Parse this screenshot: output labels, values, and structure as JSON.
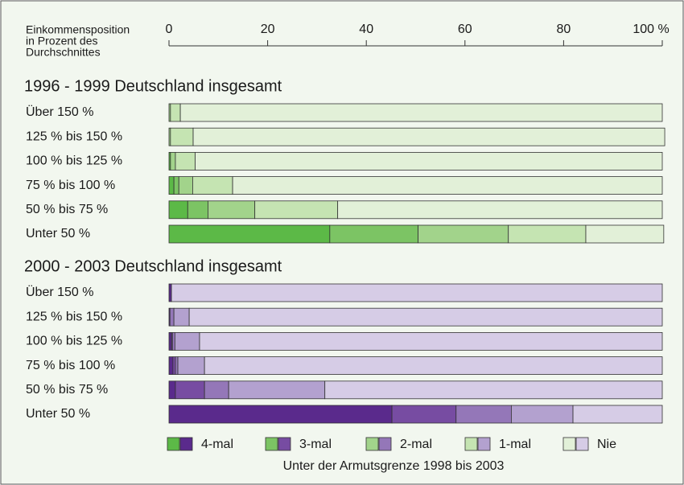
{
  "chart_data": {
    "type": "stacked-barh",
    "xlabel": [
      "Einkommensposition",
      "in Prozent  des",
      "Durchschnittes"
    ],
    "xlim": [
      0,
      100
    ],
    "xticks": [
      0,
      20,
      40,
      60,
      80,
      {
        "value": 100,
        "label": "100 %"
      }
    ],
    "legend": [
      "4-mal",
      "3-mal",
      "2-mal",
      "1-mal",
      "Nie"
    ],
    "caption": "Unter der Armutsgrenze 1998 bis 2003",
    "groups": [
      {
        "title": "1996 - 1999 Deutschland insgesamt",
        "categories": [
          "Über 150 %",
          "125 % bis 150 %",
          "100 % bis 125 %",
          "75 % bis 100 %",
          "50 % bis 75 %",
          "Unter 50 %"
        ],
        "series": [
          {
            "color": "#5cb947",
            "values": [
              0,
              0,
              0.3,
              1,
              3.8,
              32.6
            ]
          },
          {
            "color": "#7cc464",
            "values": [
              0,
              0,
              0,
              1,
              4.1,
              17.9
            ]
          },
          {
            "color": "#a2d38b",
            "values": [
              0.3,
              0.3,
              1,
              2.8,
              9.5,
              18.3
            ]
          },
          {
            "color": "#c5e4b2",
            "values": [
              2,
              4.6,
              4,
              8.1,
              16.8,
              15.7
            ]
          },
          {
            "color": "#e2f0d8",
            "values": [
              97.7,
              95.6,
              94.7,
              87.1,
              65.8,
              15.8
            ]
          }
        ]
      },
      {
        "title": "2000 - 2003 Deutschland insgesamt",
        "categories": [
          "Über 150 %",
          "125 % bis 150 %",
          "100 % bis 125 %",
          "75 % bis 100 %",
          "50 % bis 75 %",
          "Unter 50 %"
        ],
        "series": [
          {
            "color": "#5a2a8c",
            "values": [
              0.5,
              0.2,
              0.5,
              0.8,
              1.3,
              45.2
            ]
          },
          {
            "color": "#774ca2",
            "values": [
              0,
              0,
              0.2,
              0.5,
              5.9,
              13
            ]
          },
          {
            "color": "#9477b8",
            "values": [
              0,
              0.8,
              0.5,
              0.5,
              4.9,
              11.2
            ]
          },
          {
            "color": "#b3a1cf",
            "values": [
              0,
              3.1,
              5,
              5.4,
              19.5,
              12.5
            ]
          },
          {
            "color": "#d6cce6",
            "values": [
              99.5,
              95.9,
              93.8,
              92.8,
              68.4,
              18.1
            ]
          }
        ]
      }
    ]
  }
}
